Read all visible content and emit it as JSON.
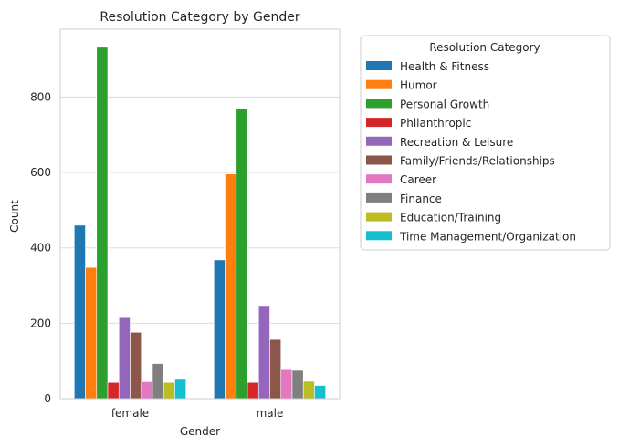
{
  "chart_data": {
    "type": "bar",
    "title": "Resolution Category by Gender",
    "xlabel": "Gender",
    "ylabel": "Count",
    "categories": [
      "female",
      "male"
    ],
    "ylim": [
      0,
      980
    ],
    "yticks": [
      0,
      200,
      400,
      600,
      800
    ],
    "grid": true,
    "legend": {
      "title": "Resolution Category",
      "placement": "outside-right"
    },
    "series": [
      {
        "name": "Health & Fitness",
        "color": "#1f77b4",
        "values": [
          460,
          368
        ]
      },
      {
        "name": "Humor",
        "color": "#ff7f0e",
        "values": [
          348,
          596
        ]
      },
      {
        "name": "Personal Growth",
        "color": "#2ca02c",
        "values": [
          932,
          769
        ]
      },
      {
        "name": "Philanthropic",
        "color": "#d62728",
        "values": [
          43,
          43
        ]
      },
      {
        "name": "Recreation & Leisure",
        "color": "#9467bd",
        "values": [
          215,
          247
        ]
      },
      {
        "name": "Family/Friends/Relationships",
        "color": "#8c564b",
        "values": [
          176,
          157
        ]
      },
      {
        "name": "Career",
        "color": "#e377c2",
        "values": [
          45,
          77
        ]
      },
      {
        "name": "Finance",
        "color": "#7f7f7f",
        "values": [
          93,
          75
        ]
      },
      {
        "name": "Education/Training",
        "color": "#bcbd22",
        "values": [
          43,
          46
        ]
      },
      {
        "name": "Time Management/Organization",
        "color": "#17becf",
        "values": [
          51,
          35
        ]
      }
    ]
  }
}
